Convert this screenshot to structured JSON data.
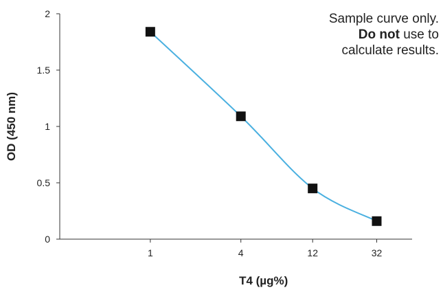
{
  "note": {
    "line1": "Sample curve only.",
    "line2_pre": "Do ",
    "line2_bold": "not",
    "line2_post": " use to",
    "line3": "calculate results."
  },
  "chart_data": {
    "type": "line",
    "xlabel": "T4 (µg%)",
    "ylabel": "OD (450 nm)",
    "xscale": "log",
    "xlim": [
      0.25,
      55
    ],
    "ylim": [
      0,
      2
    ],
    "xticks": [
      1,
      4,
      12,
      32
    ],
    "xtick_labels": [
      "1",
      "4",
      "12",
      "32"
    ],
    "yticks": [
      0,
      0.5,
      1,
      1.5,
      2
    ],
    "ytick_labels": [
      "0",
      "0.5",
      "1",
      "1.5",
      "2"
    ],
    "grid": false,
    "series": [
      {
        "x": [
          1,
          4,
          12,
          32
        ],
        "y": [
          1.84,
          1.09,
          0.45,
          0.16
        ]
      }
    ],
    "colors": {
      "line": "#4ab0e0",
      "marker": "#111111",
      "axis": "#333333"
    }
  }
}
